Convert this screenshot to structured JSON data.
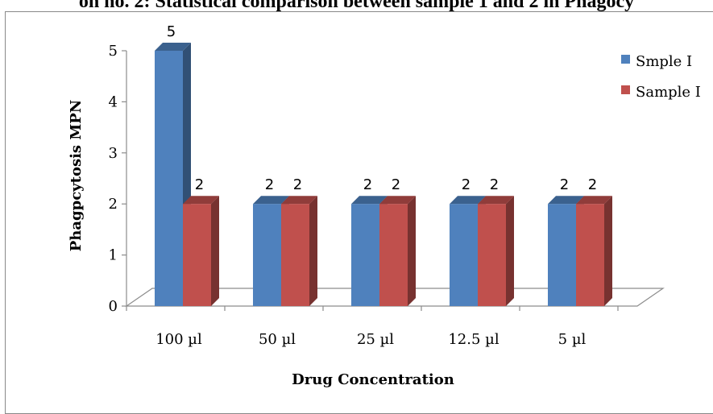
{
  "chart_data": {
    "type": "bar",
    "title": "on no. 2: Statistical comparison between sample 1 and 2 in Phagocy",
    "xlabel": "Drug Concentration",
    "ylabel": "Phagpcytosis MPN",
    "categories": [
      "100 µl",
      "50 µl",
      "25 µl",
      "12.5 µl",
      "5 µl"
    ],
    "ylim": [
      0,
      5
    ],
    "yticks": [
      "0",
      "1",
      "2",
      "3",
      "4",
      "5"
    ],
    "series": [
      {
        "name": "Smple I",
        "values": [
          5,
          2,
          2,
          2,
          2
        ],
        "color": "#4F81BD"
      },
      {
        "name": "Sample I",
        "values": [
          2,
          2,
          2,
          2,
          2
        ],
        "color": "#C0504D"
      }
    ],
    "data_labels": true,
    "grid": false,
    "legend": "right",
    "style": "3d-clustered"
  }
}
